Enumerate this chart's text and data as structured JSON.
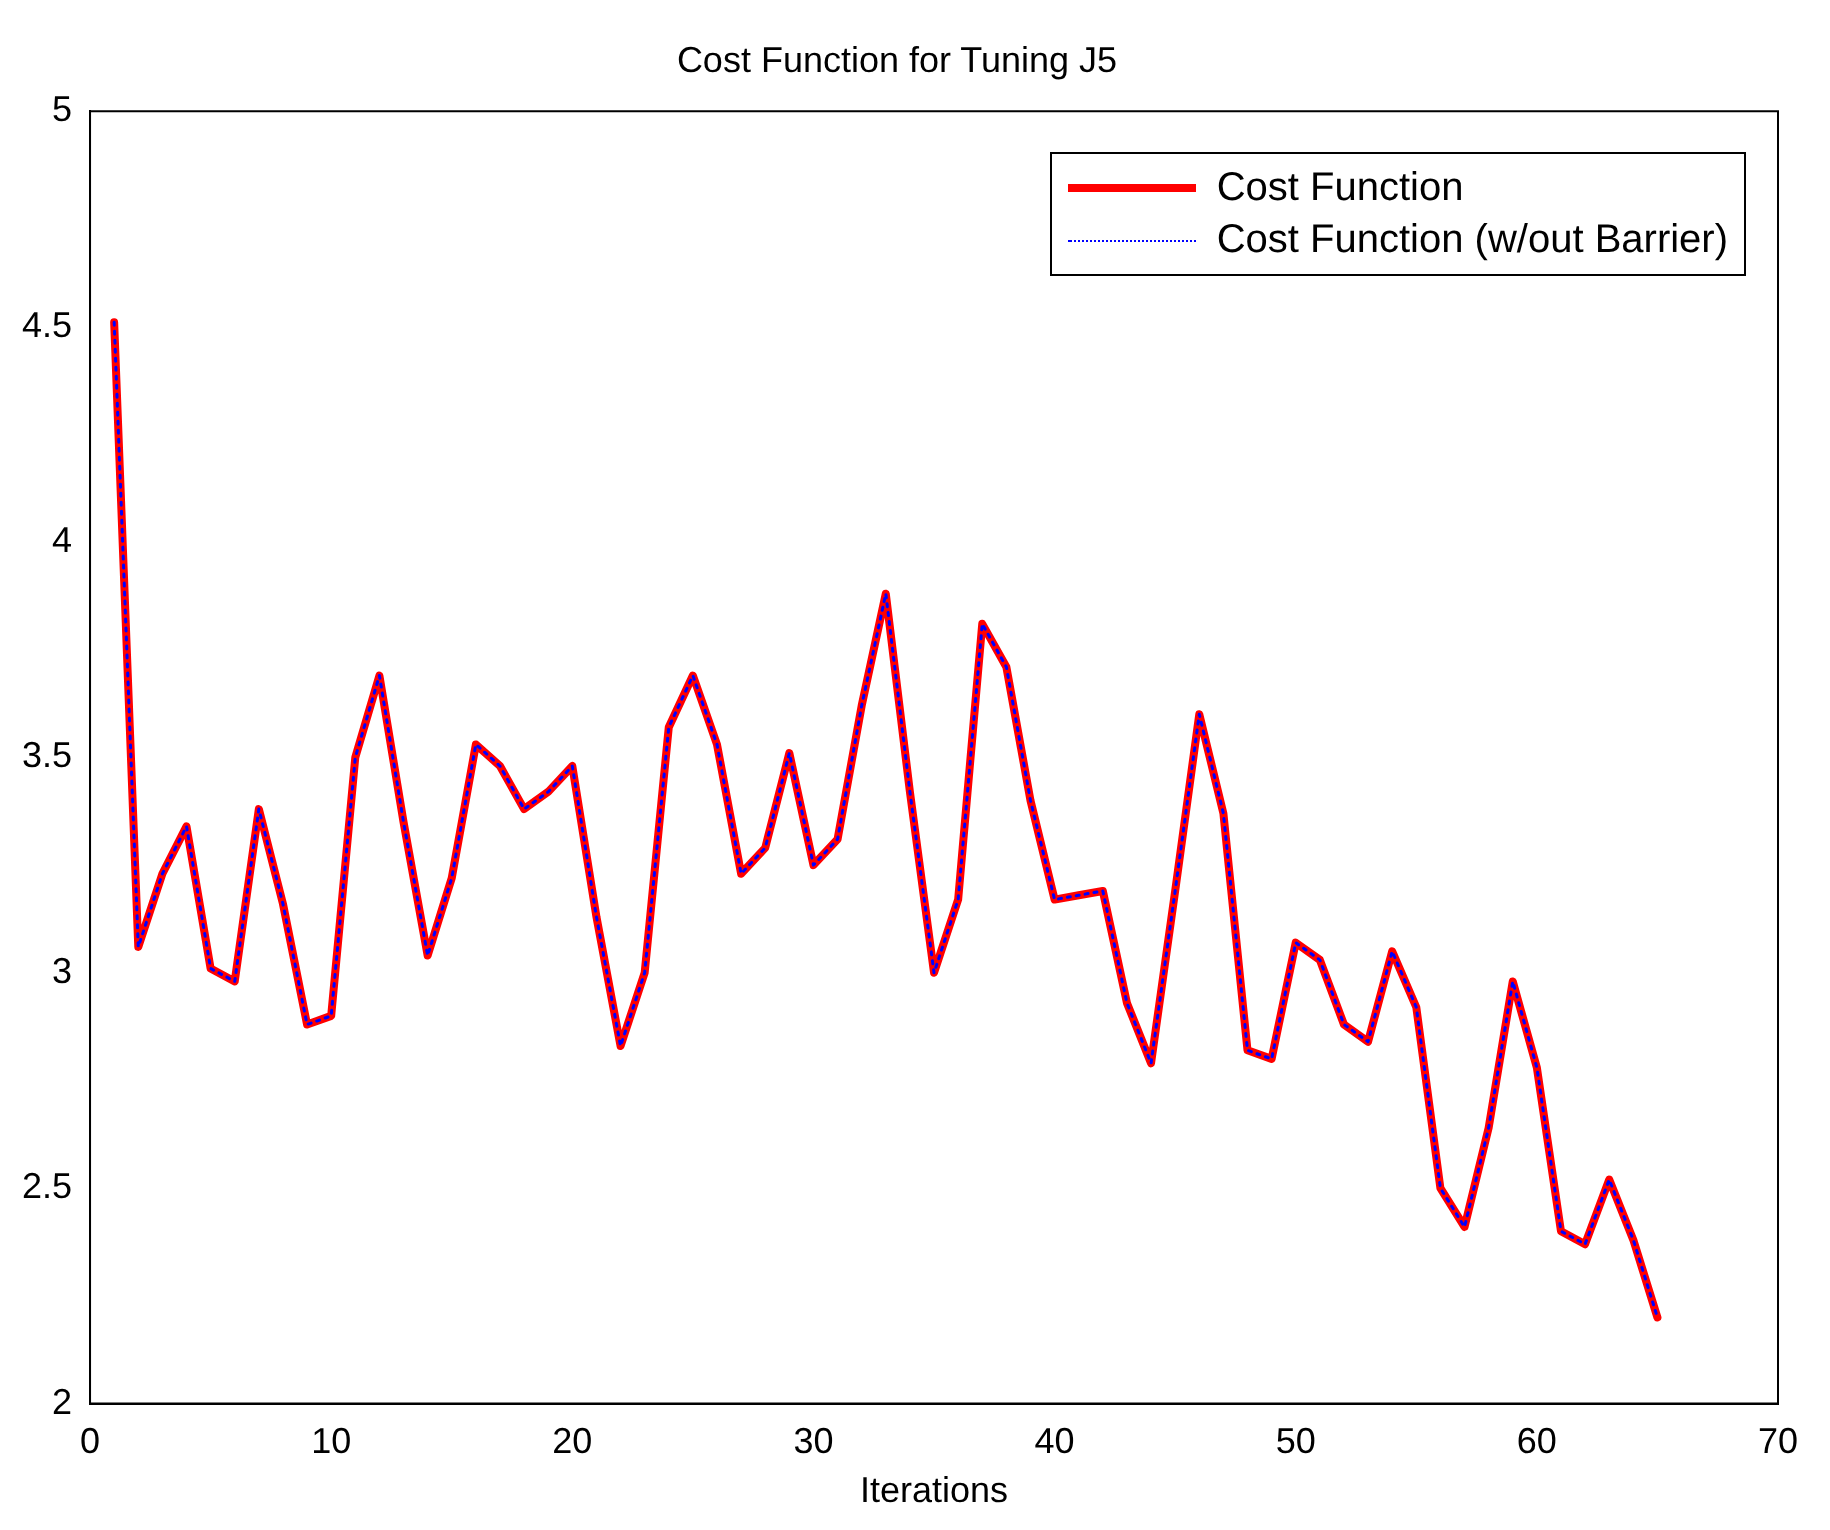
{
  "chart_data": {
    "type": "line",
    "title": "Cost Function for Tuning J5",
    "xlabel": "Iterations",
    "x": [
      1,
      2,
      3,
      4,
      5,
      6,
      7,
      8,
      9,
      10,
      11,
      12,
      13,
      14,
      15,
      16,
      17,
      18,
      19,
      20,
      21,
      22,
      23,
      24,
      25,
      26,
      27,
      28,
      29,
      30,
      31,
      32,
      33,
      34,
      35,
      36,
      37,
      38,
      39,
      40,
      41,
      42,
      43,
      44,
      45,
      46,
      47,
      48,
      49,
      50,
      51,
      52,
      53,
      54,
      55,
      56,
      57,
      58,
      59,
      60,
      61,
      62,
      63,
      64,
      65
    ],
    "series": [
      {
        "name": "Cost Function",
        "color": "#ff0000",
        "line_style": "solid",
        "values": [
          4.51,
          3.06,
          3.23,
          3.34,
          3.01,
          2.98,
          3.38,
          3.16,
          2.88,
          2.9,
          3.5,
          3.69,
          3.35,
          3.04,
          3.22,
          3.53,
          3.48,
          3.38,
          3.42,
          3.48,
          3.13,
          2.83,
          3.0,
          3.57,
          3.69,
          3.53,
          3.23,
          3.29,
          3.51,
          3.25,
          3.31,
          3.62,
          3.88,
          3.42,
          3.0,
          3.17,
          3.81,
          3.71,
          3.4,
          3.17,
          3.18,
          3.19,
          2.93,
          2.79,
          3.19,
          3.6,
          3.37,
          2.82,
          2.8,
          3.07,
          3.03,
          2.88,
          2.84,
          3.05,
          2.92,
          2.5,
          2.41,
          2.64,
          2.98,
          2.78,
          2.4,
          2.37,
          2.52,
          2.38,
          2.2
        ]
      },
      {
        "name": "Cost Function (w/out Barrier)",
        "color": "#0000ff",
        "line_style": "dotted",
        "values": [
          4.51,
          3.06,
          3.23,
          3.34,
          3.01,
          2.98,
          3.38,
          3.16,
          2.88,
          2.9,
          3.5,
          3.69,
          3.35,
          3.04,
          3.22,
          3.53,
          3.48,
          3.38,
          3.42,
          3.48,
          3.13,
          2.83,
          3.0,
          3.57,
          3.69,
          3.53,
          3.23,
          3.29,
          3.51,
          3.25,
          3.31,
          3.62,
          3.88,
          3.42,
          3.0,
          3.17,
          3.81,
          3.71,
          3.4,
          3.17,
          3.18,
          3.19,
          2.93,
          2.79,
          3.19,
          3.6,
          3.37,
          2.82,
          2.8,
          3.07,
          3.03,
          2.88,
          2.84,
          3.05,
          2.92,
          2.5,
          2.41,
          2.64,
          2.98,
          2.78,
          2.4,
          2.37,
          2.52,
          2.38,
          2.2
        ]
      }
    ],
    "xlim": [
      0,
      70
    ],
    "xticks": [
      0,
      10,
      20,
      30,
      40,
      50,
      60,
      70
    ],
    "ylim": [
      2,
      5
    ],
    "yticks": [
      2,
      2.5,
      3,
      3.5,
      4,
      4.5,
      5
    ],
    "grid": false,
    "legend": "top right",
    "marker": "none"
  }
}
